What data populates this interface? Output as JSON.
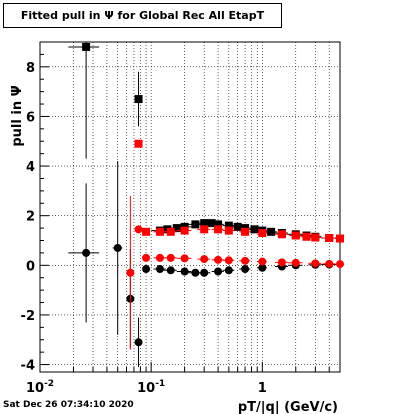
{
  "title": "Fitted pull in  Ψ  for Global Rec All EtapT",
  "timestamp": "Sat Dec 26 07:34:10 2020",
  "chart_data": {
    "type": "scatter",
    "title": "Fitted pull in  Ψ  for Global Rec All EtapT",
    "xlabel": "pT/|q| (GeV/c)",
    "ylabel": "pull in  Ψ",
    "xscale": "log",
    "xlim": [
      0.01,
      5.0
    ],
    "ylim": [
      -4.3,
      9.0
    ],
    "grid": true,
    "x_ticks": [
      {
        "value": 0.01,
        "label": "10^-2"
      },
      {
        "value": 0.1,
        "label": "10^-1"
      },
      {
        "value": 1,
        "label": "1"
      }
    ],
    "y_ticks": [
      -4,
      -2,
      0,
      2,
      4,
      6,
      8
    ],
    "series": [
      {
        "color": "#000000",
        "marker": "square",
        "x": [
          0.026,
          0.077,
          0.12,
          0.14,
          0.17,
          0.2,
          0.25,
          0.3,
          0.35,
          0.4,
          0.5,
          0.6,
          0.7,
          0.85,
          1.0,
          1.2,
          1.5,
          2.0,
          2.5,
          3.0,
          4.0
        ],
        "y": [
          8.8,
          6.7,
          1.4,
          1.45,
          1.5,
          1.55,
          1.65,
          1.7,
          1.7,
          1.65,
          1.6,
          1.55,
          1.5,
          1.45,
          1.4,
          1.35,
          1.3,
          1.25,
          1.2,
          1.15,
          1.1
        ],
        "yerr": [
          4.5,
          1.1,
          0.1,
          0.1,
          0.1,
          0.15,
          0.15,
          0.15,
          0.15,
          0.15,
          0.12,
          0.12,
          0.1,
          0.1,
          0.1,
          0.1,
          0.08,
          0.08,
          0.08,
          0.08,
          0.08
        ],
        "xerr_lo": [
          0.008,
          0.002,
          0.02,
          0.02,
          0.02,
          0.03,
          0.04,
          0.04,
          0.05,
          0.05,
          0.06,
          0.07,
          0.08,
          0.1,
          0.1,
          0.15,
          0.2,
          0.3,
          0.3,
          0.4,
          0.6
        ],
        "xerr_hi": [
          0.008,
          0.002,
          0.02,
          0.02,
          0.02,
          0.03,
          0.04,
          0.04,
          0.05,
          0.05,
          0.06,
          0.07,
          0.08,
          0.1,
          0.1,
          0.15,
          0.2,
          0.3,
          0.3,
          0.4,
          0.6
        ]
      },
      {
        "color": "#ff0000",
        "marker": "square",
        "x": [
          0.077,
          0.09,
          0.12,
          0.15,
          0.2,
          0.3,
          0.4,
          0.5,
          0.7,
          1.0,
          1.5,
          2.0,
          2.5,
          3.0,
          4.0,
          5.0
        ],
        "y": [
          4.9,
          1.35,
          1.35,
          1.35,
          1.4,
          1.45,
          1.45,
          1.4,
          1.35,
          1.3,
          1.25,
          1.2,
          1.15,
          1.12,
          1.1,
          1.08
        ],
        "yerr": [
          0.15,
          0.1,
          0.08,
          0.08,
          0.08,
          0.08,
          0.08,
          0.08,
          0.08,
          0.08,
          0.08,
          0.08,
          0.08,
          0.08,
          0.08,
          0.08
        ],
        "xerr_lo": [
          0.002,
          0.005,
          0.015,
          0.02,
          0.03,
          0.04,
          0.05,
          0.06,
          0.08,
          0.1,
          0.2,
          0.25,
          0.3,
          0.4,
          0.5,
          0.5
        ],
        "xerr_hi": [
          0.002,
          0.005,
          0.015,
          0.02,
          0.03,
          0.04,
          0.05,
          0.06,
          0.08,
          0.1,
          0.2,
          0.25,
          0.3,
          0.4,
          0.5,
          0.5
        ]
      },
      {
        "color": "#000000",
        "marker": "circle",
        "x": [
          0.026,
          0.05,
          0.065,
          0.077,
          0.09,
          0.12,
          0.15,
          0.2,
          0.25,
          0.3,
          0.4,
          0.5,
          0.7,
          1.0,
          1.5,
          2.0,
          3.0,
          4.0
        ],
        "y": [
          0.5,
          0.7,
          -1.35,
          -3.1,
          -0.15,
          -0.15,
          -0.2,
          -0.25,
          -0.3,
          -0.3,
          -0.25,
          -0.2,
          -0.15,
          -0.1,
          -0.05,
          0.0,
          0.02,
          0.03
        ],
        "yerr": [
          2.8,
          3.5,
          2.0,
          1.0,
          0.1,
          0.1,
          0.1,
          0.15,
          0.15,
          0.15,
          0.12,
          0.12,
          0.1,
          0.1,
          0.08,
          0.08,
          0.08,
          0.08
        ],
        "xerr_lo": [
          0.008,
          0.005,
          0.002,
          0.002,
          0.005,
          0.015,
          0.02,
          0.03,
          0.04,
          0.04,
          0.05,
          0.06,
          0.08,
          0.1,
          0.2,
          0.3,
          0.4,
          0.6
        ],
        "xerr_hi": [
          0.008,
          0.005,
          0.002,
          0.002,
          0.005,
          0.015,
          0.02,
          0.03,
          0.04,
          0.04,
          0.05,
          0.06,
          0.08,
          0.1,
          0.2,
          0.3,
          0.4,
          0.6
        ]
      },
      {
        "color": "#ff0000",
        "marker": "circle",
        "x": [
          0.065,
          0.077,
          0.09,
          0.12,
          0.15,
          0.2,
          0.3,
          0.4,
          0.5,
          0.7,
          1.0,
          1.5,
          2.0,
          3.0,
          4.0,
          5.0
        ],
        "y": [
          -0.3,
          1.45,
          0.3,
          0.3,
          0.3,
          0.28,
          0.25,
          0.22,
          0.2,
          0.18,
          0.15,
          0.12,
          0.1,
          0.08,
          0.06,
          0.05
        ],
        "yerr": [
          3.1,
          0.1,
          0.08,
          0.08,
          0.08,
          0.08,
          0.08,
          0.08,
          0.08,
          0.08,
          0.08,
          0.08,
          0.08,
          0.08,
          0.08,
          0.08
        ],
        "xerr_lo": [
          0.002,
          0.002,
          0.005,
          0.015,
          0.02,
          0.03,
          0.04,
          0.05,
          0.06,
          0.08,
          0.1,
          0.2,
          0.3,
          0.4,
          0.5,
          0.5
        ],
        "xerr_hi": [
          0.002,
          0.002,
          0.005,
          0.015,
          0.02,
          0.03,
          0.04,
          0.05,
          0.06,
          0.08,
          0.1,
          0.2,
          0.3,
          0.4,
          0.5,
          0.5
        ]
      }
    ]
  }
}
